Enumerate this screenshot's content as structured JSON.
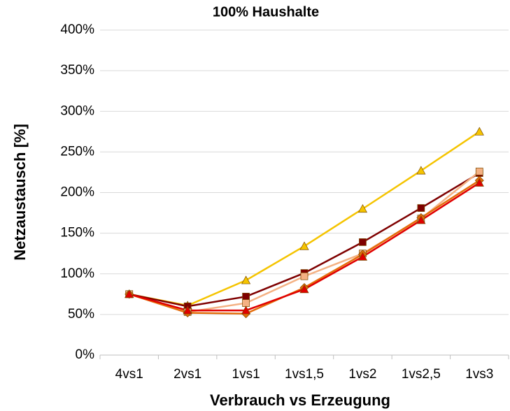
{
  "chart_data": {
    "type": "line",
    "title": "100% Haushalte",
    "x_label": "Verbrauch vs Erzeugung",
    "y_label": "Netzaustausch [%]",
    "categories": [
      "4vs1",
      "2vs1",
      "1vs1",
      "1vs1,5",
      "1vs2",
      "1vs2,5",
      "1vs3"
    ],
    "series": [
      {
        "color": "#f5c400",
        "marker": "triangle",
        "values": [
          75,
          61,
          92,
          134,
          180,
          227,
          275
        ]
      },
      {
        "color": "#7f0000",
        "marker": "square",
        "values": [
          75,
          60,
          72,
          101,
          139,
          181,
          224
        ]
      },
      {
        "color": "#f4b183",
        "marker": "square",
        "values": [
          75,
          53,
          64,
          97,
          125,
          168,
          226
        ]
      },
      {
        "color": "#e46c0a",
        "marker": "diamond",
        "values": [
          75,
          52,
          51,
          83,
          124,
          169,
          215
        ]
      },
      {
        "color": "#e00000",
        "marker": "triangle",
        "values": [
          75,
          55,
          55,
          81,
          121,
          166,
          212
        ]
      }
    ],
    "ylim": [
      0,
      400
    ],
    "yticks": [
      {
        "value": 0,
        "label": "0%"
      },
      {
        "value": 50,
        "label": "50%"
      },
      {
        "value": 100,
        "label": "100%"
      },
      {
        "value": 150,
        "label": "150%"
      },
      {
        "value": 200,
        "label": "200%"
      },
      {
        "value": 250,
        "label": "250%"
      },
      {
        "value": 300,
        "label": "300%"
      },
      {
        "value": 350,
        "label": "350%"
      },
      {
        "value": 400,
        "label": "400%"
      }
    ],
    "grid": true
  }
}
